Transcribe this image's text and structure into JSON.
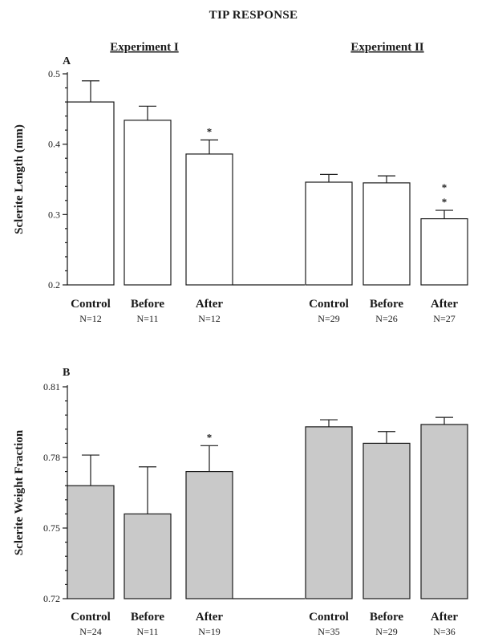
{
  "figure_title": "TIP RESPONSE",
  "experiment_labels": [
    "Experiment I",
    "Experiment II"
  ],
  "colors": {
    "panel_a_fill": "#ffffff",
    "panel_b_fill": "#c9c9c9",
    "stroke": "#1a1a1a"
  },
  "chart_data": [
    {
      "type": "bar",
      "panel": "A",
      "ylabel": "Sclerite Length (mm)",
      "ylim": [
        0.2,
        0.5
      ],
      "yticks": [
        "0.2",
        "0.3",
        "0.4",
        "0.5"
      ],
      "ytick_values": [
        0.2,
        0.3,
        0.4,
        0.5
      ],
      "categories": [
        "Control",
        "Before",
        "After",
        "Control",
        "Before",
        "After"
      ],
      "n_labels": [
        "N=12",
        "N=11",
        "N=12",
        "N=29",
        "N=26",
        "N=27"
      ],
      "groups": [
        "Experiment I",
        "Experiment I",
        "Experiment I",
        "Experiment II",
        "Experiment II",
        "Experiment II"
      ],
      "values": [
        0.46,
        0.434,
        0.386,
        0.346,
        0.345,
        0.294
      ],
      "errors": [
        0.03,
        0.02,
        0.02,
        0.011,
        0.01,
        0.012
      ],
      "significance": [
        "",
        "",
        "*",
        "",
        "",
        "**"
      ],
      "grid": false
    },
    {
      "type": "bar",
      "panel": "B",
      "ylabel": "Sclerite Weight Fraction",
      "ylim": [
        0.72,
        0.81
      ],
      "yticks": [
        "0.72",
        "0.75",
        "0.78",
        "0.81"
      ],
      "ytick_values": [
        0.72,
        0.75,
        0.78,
        0.81
      ],
      "categories": [
        "Control",
        "Before",
        "After",
        "Control",
        "Before",
        "After"
      ],
      "n_labels": [
        "N=24",
        "N=11",
        "N=19",
        "N=35",
        "N=29",
        "N=36"
      ],
      "groups": [
        "Experiment I",
        "Experiment I",
        "Experiment I",
        "Experiment II",
        "Experiment II",
        "Experiment II"
      ],
      "values": [
        0.768,
        0.756,
        0.774,
        0.793,
        0.786,
        0.794
      ],
      "errors": [
        0.013,
        0.02,
        0.011,
        0.003,
        0.005,
        0.003
      ],
      "significance": [
        "",
        "",
        "*",
        "",
        "",
        ""
      ],
      "grid": false
    }
  ]
}
